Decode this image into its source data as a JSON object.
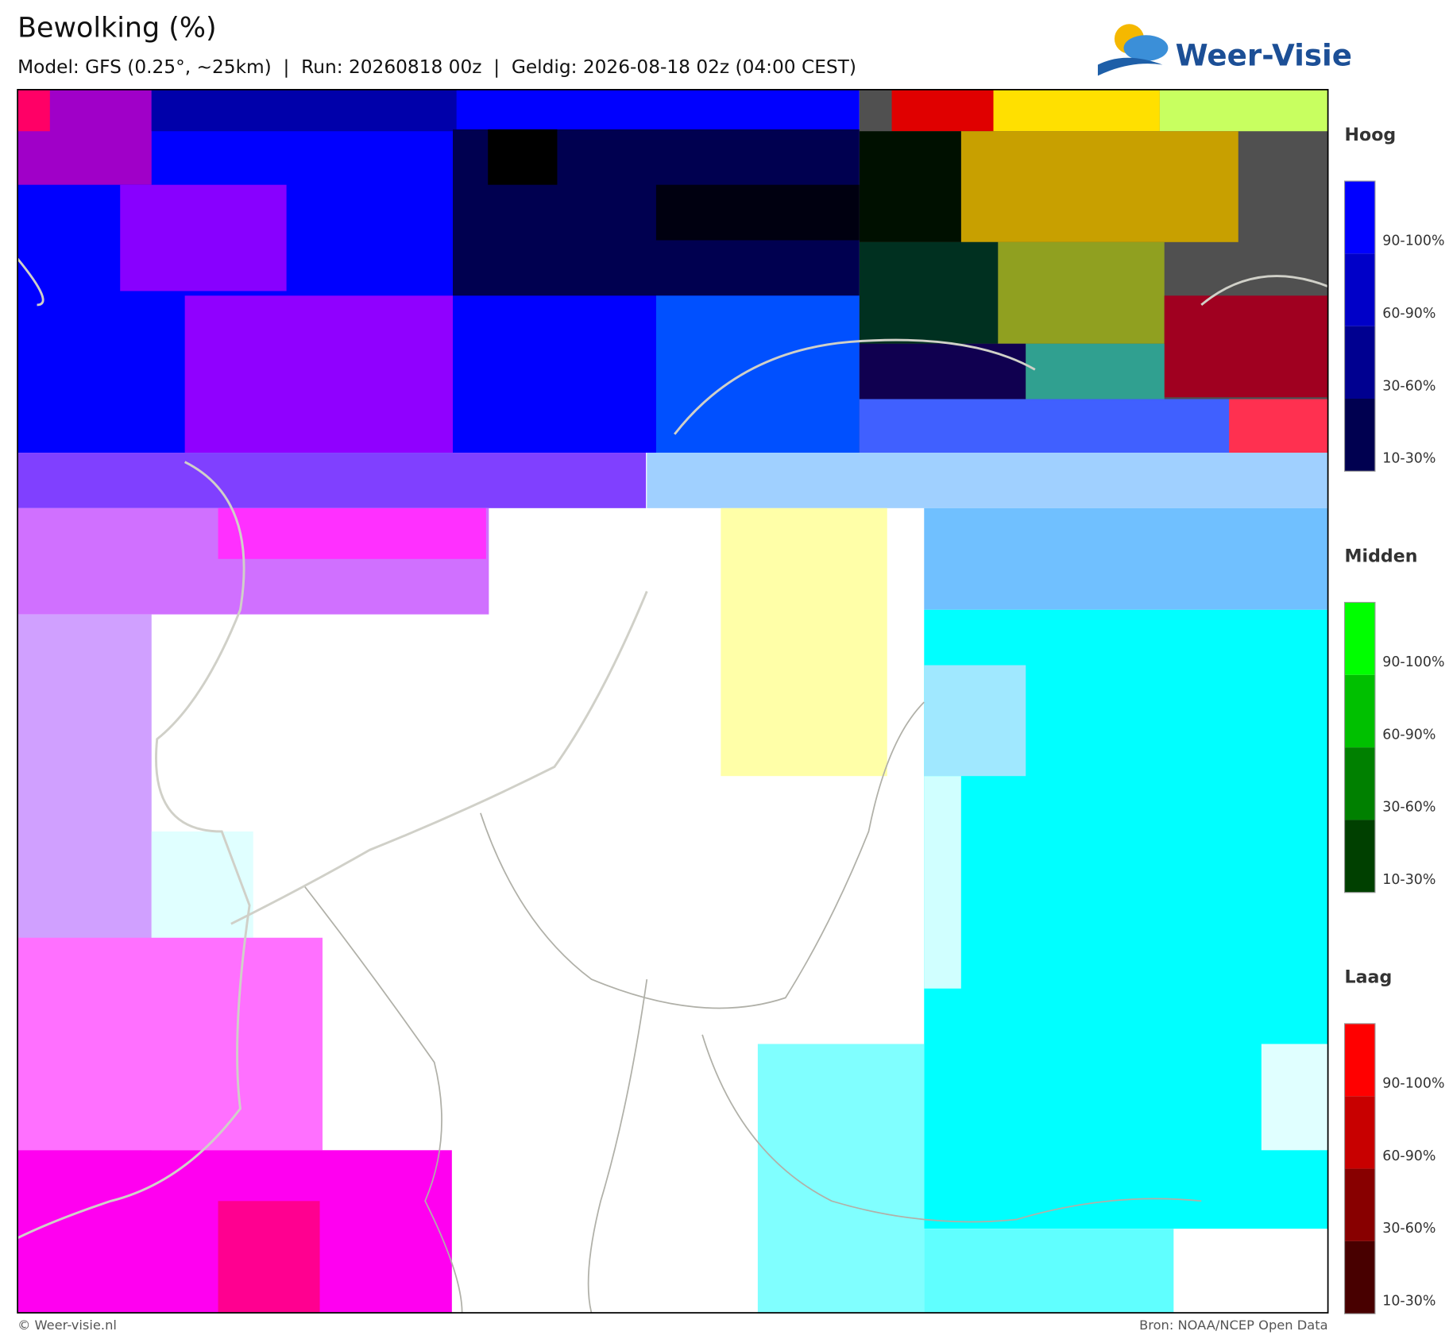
{
  "header": {
    "title": "Bewolking (%)",
    "subtitle": "Model: GFS (0.25°, ~25km)  |  Run: 20260818 00z  |  Geldig: 2026-08-18 02z (04:00 CEST)",
    "logo": "Weer-Visie"
  },
  "legend": [
    {
      "title": "Hoog",
      "labels": [
        "90-100%",
        "60-90%",
        "30-60%",
        "10-30%"
      ]
    },
    {
      "title": "Midden",
      "labels": [
        "90-100%",
        "60-90%",
        "30-60%",
        "10-30%"
      ]
    },
    {
      "title": "Laag",
      "labels": [
        "90-100%",
        "60-90%",
        "30-60%",
        "10-30%"
      ]
    }
  ],
  "footer": {
    "left": "© Weer-visie.nl",
    "right": "Bron: NOAA/NCEP Open Data"
  }
}
